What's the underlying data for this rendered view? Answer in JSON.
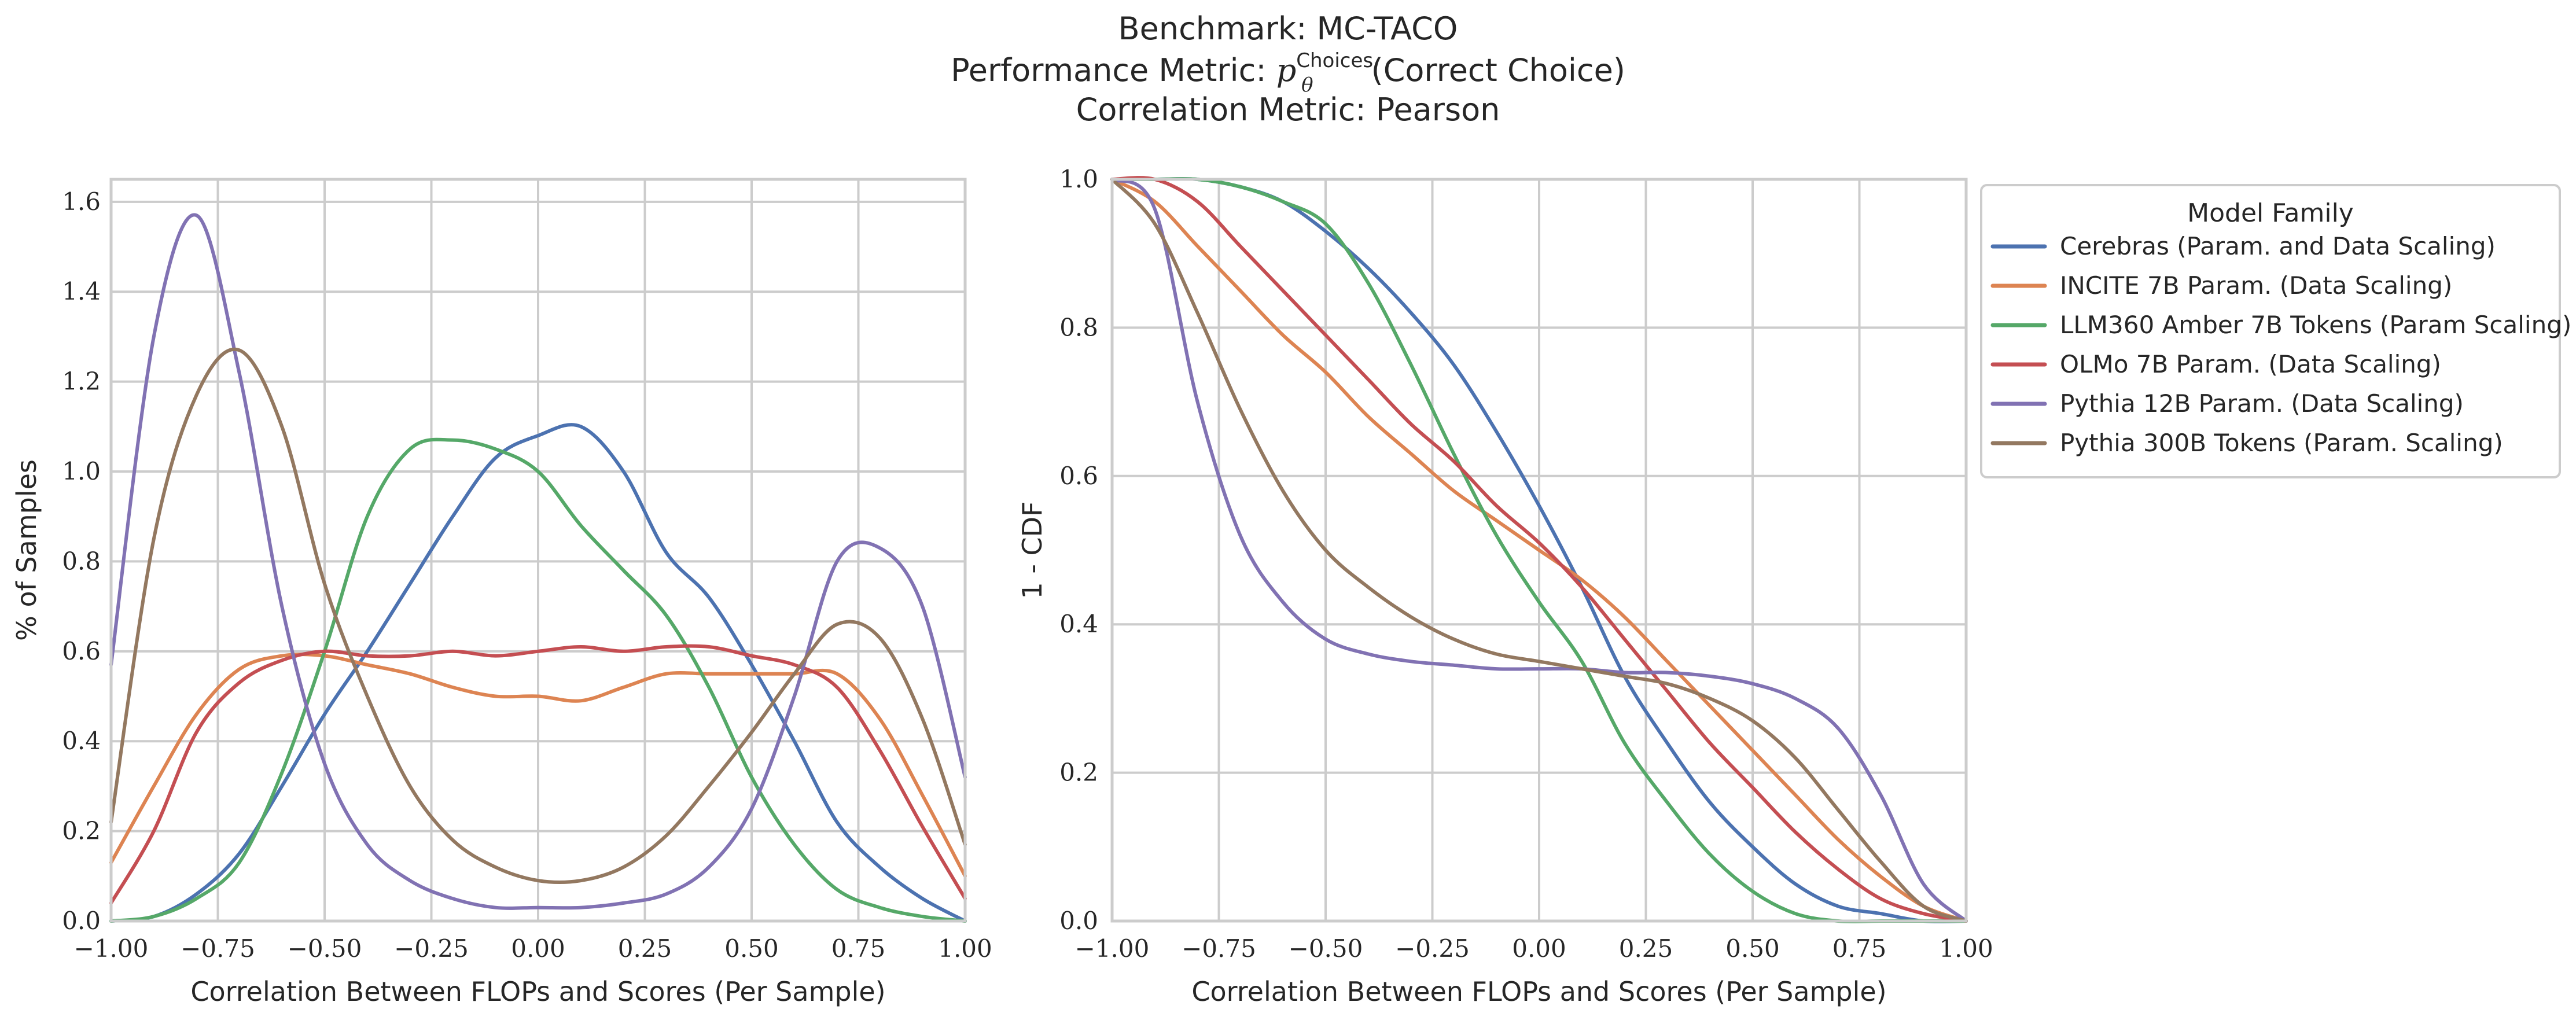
{
  "title": {
    "line1": "Benchmark: MC-TACO",
    "line2_prefix": "Performance Metric: ",
    "line2_math": "p",
    "line2_sup": "Choices",
    "line2_sub": "θ",
    "line2_suffix": "(Correct Choice)",
    "line3": "Correlation Metric: Pearson"
  },
  "legend": {
    "title": "Model Family",
    "placement": "outside-right"
  },
  "colors": {
    "Cerebras": "#4c72b0",
    "INCITE": "#dd8452",
    "LLM360": "#55a868",
    "OLMo": "#c44e52",
    "Pythia12B": "#8172b3",
    "Pythia300B": "#937860"
  },
  "chart_data": [
    {
      "type": "line",
      "kind": "kde",
      "xlabel": "Correlation Between FLOPs and Scores (Per Sample)",
      "ylabel": "% of Samples",
      "xlim": [
        -1.0,
        1.0
      ],
      "ylim": [
        0.0,
        1.65
      ],
      "xticks": [
        "−1.00",
        "−0.75",
        "−0.50",
        "−0.25",
        "0.00",
        "0.25",
        "0.50",
        "0.75",
        "1.00"
      ],
      "yticks": [
        "0.0",
        "0.2",
        "0.4",
        "0.6",
        "0.8",
        "1.0",
        "1.2",
        "1.4",
        "1.6"
      ],
      "grid": true,
      "x": [
        -1.0,
        -0.9,
        -0.8,
        -0.7,
        -0.6,
        -0.5,
        -0.4,
        -0.3,
        -0.2,
        -0.1,
        0.0,
        0.1,
        0.2,
        0.3,
        0.4,
        0.5,
        0.6,
        0.7,
        0.8,
        0.9,
        1.0
      ],
      "series": [
        {
          "name": "Cerebras (Param. and Data Scaling)",
          "color_key": "Cerebras",
          "values": [
            0.0,
            0.01,
            0.06,
            0.15,
            0.3,
            0.46,
            0.6,
            0.75,
            0.9,
            1.03,
            1.08,
            1.1,
            1.0,
            0.82,
            0.72,
            0.57,
            0.4,
            0.22,
            0.12,
            0.05,
            0.0
          ]
        },
        {
          "name": "INCITE 7B Param. (Data Scaling)",
          "color_key": "INCITE",
          "values": [
            0.13,
            0.3,
            0.46,
            0.56,
            0.59,
            0.59,
            0.57,
            0.55,
            0.52,
            0.5,
            0.5,
            0.49,
            0.52,
            0.55,
            0.55,
            0.55,
            0.55,
            0.55,
            0.45,
            0.28,
            0.1
          ]
        },
        {
          "name": "LLM360 Amber 7B Tokens (Param Scaling)",
          "color_key": "LLM360",
          "values": [
            0.0,
            0.01,
            0.05,
            0.13,
            0.33,
            0.6,
            0.9,
            1.05,
            1.07,
            1.05,
            1.0,
            0.88,
            0.78,
            0.68,
            0.52,
            0.32,
            0.17,
            0.07,
            0.03,
            0.01,
            0.0
          ]
        },
        {
          "name": "OLMo 7B Param. (Data Scaling)",
          "color_key": "OLMo",
          "values": [
            0.04,
            0.2,
            0.42,
            0.53,
            0.58,
            0.6,
            0.59,
            0.59,
            0.6,
            0.59,
            0.6,
            0.61,
            0.6,
            0.61,
            0.61,
            0.59,
            0.57,
            0.52,
            0.38,
            0.21,
            0.05
          ]
        },
        {
          "name": "Pythia 12B Param. (Data Scaling)",
          "color_key": "Pythia12B",
          "values": [
            0.57,
            1.3,
            1.57,
            1.22,
            0.7,
            0.35,
            0.17,
            0.09,
            0.05,
            0.03,
            0.03,
            0.03,
            0.04,
            0.06,
            0.12,
            0.25,
            0.5,
            0.8,
            0.83,
            0.7,
            0.32
          ]
        },
        {
          "name": "Pythia 300B Tokens (Param. Scaling)",
          "color_key": "Pythia300B",
          "values": [
            0.22,
            0.85,
            1.17,
            1.27,
            1.1,
            0.75,
            0.5,
            0.3,
            0.18,
            0.12,
            0.09,
            0.09,
            0.12,
            0.19,
            0.3,
            0.42,
            0.55,
            0.66,
            0.63,
            0.45,
            0.17
          ]
        }
      ]
    },
    {
      "type": "line",
      "kind": "1-cdf",
      "xlabel": "Correlation Between FLOPs and Scores (Per Sample)",
      "ylabel": "1 - CDF",
      "xlim": [
        -1.0,
        1.0
      ],
      "ylim": [
        0.0,
        1.0
      ],
      "xticks": [
        "−1.00",
        "−0.75",
        "−0.50",
        "−0.25",
        "0.00",
        "0.25",
        "0.50",
        "0.75",
        "1.00"
      ],
      "yticks": [
        "0.0",
        "0.2",
        "0.4",
        "0.6",
        "0.8",
        "1.0"
      ],
      "grid": true,
      "x": [
        -1.0,
        -0.9,
        -0.8,
        -0.7,
        -0.6,
        -0.5,
        -0.4,
        -0.3,
        -0.2,
        -0.1,
        0.0,
        0.1,
        0.2,
        0.3,
        0.4,
        0.5,
        0.6,
        0.7,
        0.8,
        0.9,
        1.0
      ],
      "series": [
        {
          "name": "Cerebras (Param. and Data Scaling)",
          "color_key": "Cerebras",
          "values": [
            1.0,
            1.0,
            1.0,
            0.99,
            0.97,
            0.93,
            0.88,
            0.82,
            0.75,
            0.66,
            0.56,
            0.45,
            0.33,
            0.24,
            0.16,
            0.1,
            0.05,
            0.02,
            0.01,
            0.0,
            0.0
          ]
        },
        {
          "name": "INCITE 7B Param. (Data Scaling)",
          "color_key": "INCITE",
          "values": [
            1.0,
            0.97,
            0.91,
            0.85,
            0.79,
            0.74,
            0.68,
            0.63,
            0.58,
            0.54,
            0.5,
            0.46,
            0.41,
            0.35,
            0.29,
            0.23,
            0.17,
            0.11,
            0.06,
            0.02,
            0.0
          ]
        },
        {
          "name": "LLM360 Amber 7B Tokens (Param Scaling)",
          "color_key": "LLM360",
          "values": [
            1.0,
            1.0,
            1.0,
            0.99,
            0.97,
            0.94,
            0.86,
            0.75,
            0.63,
            0.52,
            0.43,
            0.35,
            0.24,
            0.16,
            0.09,
            0.04,
            0.01,
            0.0,
            0.0,
            0.0,
            0.0
          ]
        },
        {
          "name": "OLMo 7B Param. (Data Scaling)",
          "color_key": "OLMo",
          "values": [
            1.0,
            1.0,
            0.97,
            0.91,
            0.85,
            0.79,
            0.73,
            0.67,
            0.62,
            0.56,
            0.51,
            0.45,
            0.38,
            0.31,
            0.24,
            0.18,
            0.12,
            0.07,
            0.03,
            0.01,
            0.0
          ]
        },
        {
          "name": "Pythia 12B Param. (Data Scaling)",
          "color_key": "Pythia12B",
          "values": [
            1.0,
            0.96,
            0.7,
            0.52,
            0.43,
            0.38,
            0.36,
            0.35,
            0.345,
            0.34,
            0.34,
            0.34,
            0.335,
            0.335,
            0.33,
            0.32,
            0.3,
            0.26,
            0.17,
            0.05,
            0.0
          ]
        },
        {
          "name": "Pythia 300B Tokens (Param. Scaling)",
          "color_key": "Pythia300B",
          "values": [
            1.0,
            0.94,
            0.82,
            0.69,
            0.58,
            0.5,
            0.45,
            0.41,
            0.38,
            0.36,
            0.35,
            0.34,
            0.33,
            0.32,
            0.3,
            0.27,
            0.22,
            0.15,
            0.08,
            0.02,
            0.0
          ]
        }
      ]
    }
  ]
}
